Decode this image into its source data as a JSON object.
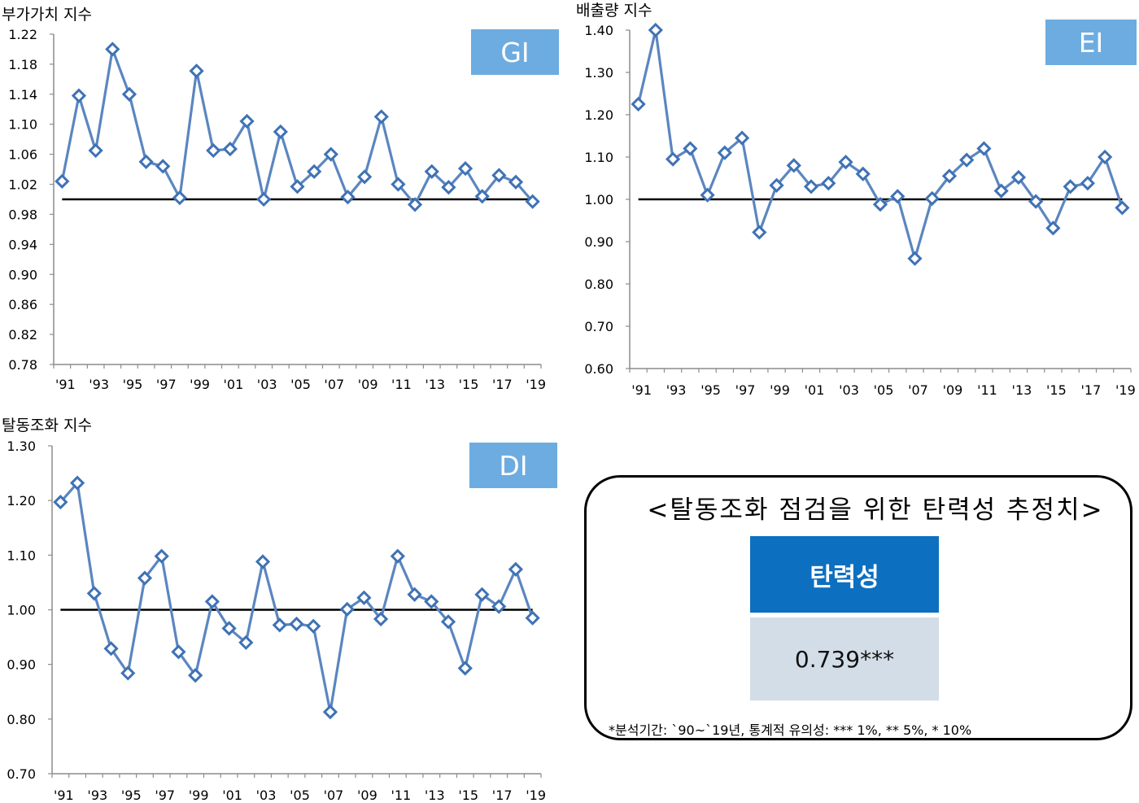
{
  "colors": {
    "series_line": "#5b86c0",
    "marker_stroke": "#3f72b5",
    "baseline": "#000000",
    "badge_bg": "#6dace0",
    "badge_text": "#ffffff",
    "table_header_bg": "#0d6fc0",
    "table_value_bg": "#d2dde8"
  },
  "chart_data": [
    {
      "id": "GI",
      "type": "line",
      "title": "부가가치 지수",
      "badge": "GI",
      "x_tick_labels": [
        "'91",
        "'93",
        "'95",
        "'97",
        "'99",
        "'01",
        "'03",
        "'05",
        "'07",
        "'09",
        "'11",
        "'13",
        "'15",
        "'17",
        "'19"
      ],
      "y_tick_labels": [
        "1.22",
        "1.18",
        "1.14",
        "1.10",
        "1.06",
        "1.02",
        "0.98",
        "0.94",
        "0.90",
        "0.86",
        "0.82",
        "0.78"
      ],
      "ylim": [
        0.78,
        1.22
      ],
      "reference_line": 1.0,
      "x": [
        1991,
        1992,
        1993,
        1994,
        1995,
        1996,
        1997,
        1998,
        1999,
        2000,
        2001,
        2002,
        2003,
        2004,
        2005,
        2006,
        2007,
        2008,
        2009,
        2010,
        2011,
        2012,
        2013,
        2014,
        2015,
        2016,
        2017,
        2018,
        2019
      ],
      "values": [
        1.024,
        1.138,
        1.065,
        1.2,
        1.14,
        1.05,
        1.044,
        1.002,
        1.171,
        1.065,
        1.067,
        1.104,
        1.0,
        1.09,
        1.017,
        1.037,
        1.06,
        1.003,
        1.03,
        1.11,
        1.02,
        0.993,
        1.037,
        1.016,
        1.041,
        1.004,
        1.032,
        1.023,
        0.997
      ]
    },
    {
      "id": "EI",
      "type": "line",
      "title": "배출량 지수",
      "badge": "EI",
      "x_tick_labels": [
        "'91",
        "'93",
        "'95",
        "'97",
        "'99",
        "'01",
        "'03",
        "'05",
        "'07",
        "'09",
        "'11",
        "'13",
        "'15",
        "'17",
        "'19"
      ],
      "y_tick_labels": [
        "1.40",
        "1.30",
        "1.20",
        "1.10",
        "1.00",
        "0.90",
        "0.80",
        "0.70",
        "0.60"
      ],
      "ylim": [
        0.6,
        1.4
      ],
      "reference_line": 1.0,
      "x": [
        1991,
        1992,
        1993,
        1994,
        1995,
        1996,
        1997,
        1998,
        1999,
        2000,
        2001,
        2002,
        2003,
        2004,
        2005,
        2006,
        2007,
        2008,
        2009,
        2010,
        2011,
        2012,
        2013,
        2014,
        2015,
        2016,
        2017,
        2018,
        2019
      ],
      "values": [
        1.225,
        1.4,
        1.095,
        1.12,
        1.01,
        1.11,
        1.145,
        0.922,
        1.033,
        1.08,
        1.03,
        1.038,
        1.088,
        1.06,
        0.988,
        1.007,
        0.86,
        1.002,
        1.055,
        1.093,
        1.12,
        1.02,
        1.052,
        0.995,
        0.932,
        1.03,
        1.038,
        1.1,
        0.98
      ]
    },
    {
      "id": "DI",
      "type": "line",
      "title": "탈동조화 지수",
      "badge": "DI",
      "x_tick_labels": [
        "'91",
        "'93",
        "'95",
        "'97",
        "'99",
        "'01",
        "'03",
        "'05",
        "'07",
        "'09",
        "'11",
        "'13",
        "'15",
        "'17",
        "'19"
      ],
      "y_tick_labels": [
        "1.30",
        "1.20",
        "1.10",
        "1.00",
        "0.90",
        "0.80",
        "0.70"
      ],
      "ylim": [
        0.7,
        1.3
      ],
      "reference_line": 1.0,
      "x": [
        1991,
        1992,
        1993,
        1994,
        1995,
        1996,
        1997,
        1998,
        1999,
        2000,
        2001,
        2002,
        2003,
        2004,
        2005,
        2006,
        2007,
        2008,
        2009,
        2010,
        2011,
        2012,
        2013,
        2014,
        2015,
        2016,
        2017,
        2018,
        2019
      ],
      "values": [
        1.197,
        1.232,
        1.03,
        0.929,
        0.884,
        1.058,
        1.098,
        0.923,
        0.88,
        1.015,
        0.966,
        0.94,
        1.088,
        0.972,
        0.974,
        0.97,
        0.813,
        1.001,
        1.022,
        0.983,
        1.098,
        1.028,
        1.015,
        0.978,
        0.893,
        1.028,
        1.006,
        1.074,
        0.985
      ]
    }
  ],
  "elasticity_box": {
    "title": "<탈동조화 점검을 위한 탄력성 추정치>",
    "header": "탄력성",
    "value": "0.739***",
    "note": "*분석기간: `90~`19년, 통계적 유의성: *** 1%, ** 5%, * 10%"
  }
}
